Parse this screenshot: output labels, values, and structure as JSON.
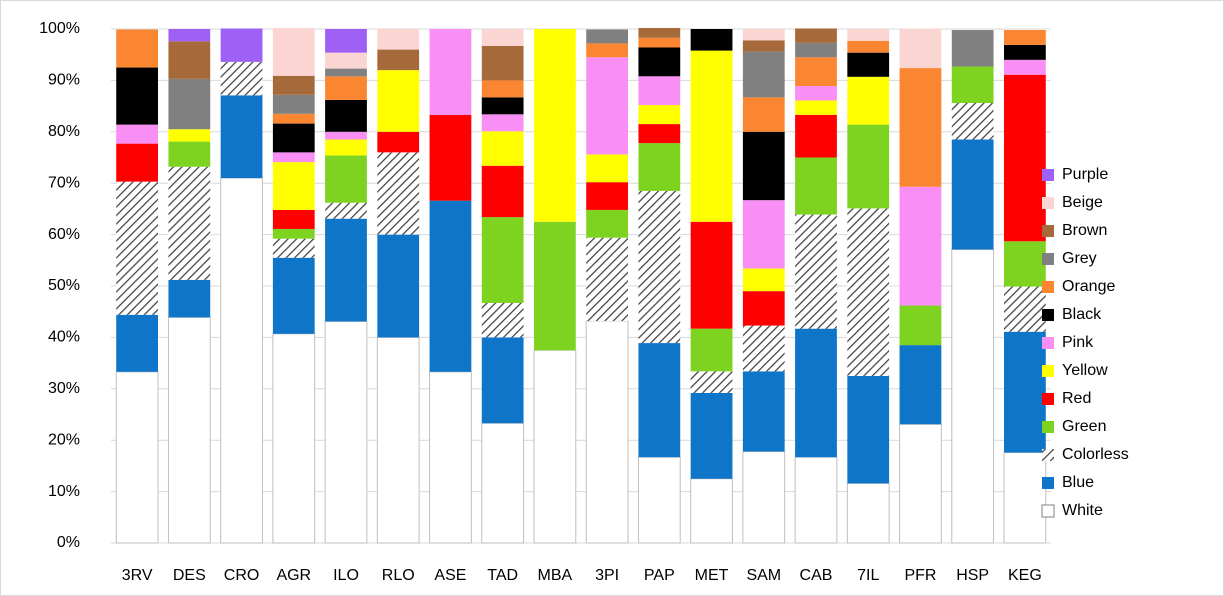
{
  "chart_data": {
    "type": "stacked-bar",
    "categories": [
      "3RV",
      "DES",
      "CRO",
      "AGR",
      "ILO",
      "RLO",
      "ASE",
      "TAD",
      "MBA",
      "3PI",
      "PAP",
      "MET",
      "SAM",
      "CAB",
      "7IL",
      "PFR",
      "HSP",
      "KEG"
    ],
    "ylim": [
      0,
      100
    ],
    "yticks": [
      {
        "value": 0,
        "label": "0%"
      },
      {
        "value": 10,
        "label": "10%"
      },
      {
        "value": 20,
        "label": "20%"
      },
      {
        "value": 30,
        "label": "30%"
      },
      {
        "value": 40,
        "label": "40%"
      },
      {
        "value": 50,
        "label": "50%"
      },
      {
        "value": 60,
        "label": "60%"
      },
      {
        "value": 70,
        "label": "70%"
      },
      {
        "value": 80,
        "label": "80%"
      },
      {
        "value": 90,
        "label": "90%"
      },
      {
        "value": 100,
        "label": "100%"
      }
    ],
    "grid": true,
    "legend": "right",
    "series": [
      {
        "name": "White",
        "color": "#ffffff",
        "values": [
          33.3,
          43.9,
          71,
          40.7,
          43.1,
          40,
          33.3,
          23.3,
          37.5,
          43.2,
          16.7,
          12.5,
          17.8,
          16.7,
          11.6,
          23.1,
          57.1,
          17.6
        ]
      },
      {
        "name": "Blue",
        "color": "#0f75c9",
        "values": [
          11.1,
          7.3,
          16.1,
          14.8,
          20,
          20,
          33.3,
          16.7,
          0,
          0,
          22.2,
          16.7,
          15.6,
          25,
          20.9,
          15.4,
          21.4,
          23.5
        ]
      },
      {
        "name": "Colorless",
        "color": "#404040",
        "pattern": "hatch",
        "values": [
          25.9,
          22,
          6.5,
          3.7,
          3.1,
          16,
          0,
          6.7,
          0,
          16.2,
          29.6,
          4.2,
          8.9,
          22.2,
          32.6,
          0,
          7.1,
          8.8
        ]
      },
      {
        "name": "Green",
        "color": "#7ed321",
        "values": [
          0,
          4.9,
          0,
          1.9,
          9.2,
          0,
          0,
          16.7,
          25,
          5.4,
          9.3,
          8.3,
          0,
          11.1,
          16.3,
          7.7,
          7.1,
          8.8
        ]
      },
      {
        "name": "Red",
        "color": "#ff0000",
        "values": [
          7.4,
          0,
          0,
          3.7,
          0,
          4,
          16.7,
          10,
          0,
          5.4,
          3.7,
          20.8,
          6.7,
          8.3,
          0,
          0,
          0,
          32.4
        ]
      },
      {
        "name": "Yellow",
        "color": "#ffff00",
        "values": [
          0,
          2.4,
          0,
          9.3,
          3.1,
          12,
          0,
          6.7,
          37.5,
          5.4,
          3.7,
          33.3,
          4.4,
          2.8,
          9.3,
          0,
          0,
          0
        ]
      },
      {
        "name": "Pink",
        "color": "#f98ef5",
        "values": [
          3.7,
          0,
          0,
          1.9,
          1.5,
          0,
          16.7,
          3.3,
          0,
          18.9,
          5.6,
          0,
          13.3,
          2.8,
          0,
          23.1,
          0,
          2.9
        ]
      },
      {
        "name": "Black",
        "color": "#000000",
        "values": [
          11.1,
          0,
          0,
          5.6,
          6.2,
          0,
          0,
          3.3,
          0,
          0,
          5.6,
          4.2,
          13.3,
          0,
          4.7,
          0,
          0,
          2.9
        ]
      },
      {
        "name": "Orange",
        "color": "#fb8632",
        "values": [
          7.4,
          0,
          0,
          1.9,
          4.6,
          0,
          0,
          3.3,
          0,
          2.7,
          1.9,
          0,
          6.7,
          5.6,
          2.3,
          23.1,
          0,
          2.9
        ]
      },
      {
        "name": "Grey",
        "color": "#808080",
        "values": [
          0,
          9.8,
          0,
          3.7,
          1.5,
          0,
          0,
          0,
          0,
          2.7,
          0,
          0,
          8.9,
          2.8,
          0,
          0,
          7.1,
          0
        ]
      },
      {
        "name": "Brown",
        "color": "#a66a3a",
        "values": [
          0,
          7.3,
          0,
          3.7,
          0,
          4,
          0,
          6.7,
          0,
          0,
          1.9,
          0,
          2.2,
          2.8,
          0,
          0,
          0,
          0
        ]
      },
      {
        "name": "Beige",
        "color": "#fbd5d2",
        "values": [
          0,
          0,
          0,
          9.3,
          3.1,
          4,
          0,
          3.3,
          0,
          0,
          0,
          0,
          2.2,
          0,
          2.3,
          7.7,
          0,
          0
        ]
      },
      {
        "name": "Purple",
        "color": "#9f60f6",
        "values": [
          0,
          2.4,
          6.5,
          0,
          4.6,
          0,
          0,
          0,
          0,
          0,
          0,
          0,
          0,
          0,
          0,
          0,
          0,
          0
        ]
      }
    ]
  }
}
